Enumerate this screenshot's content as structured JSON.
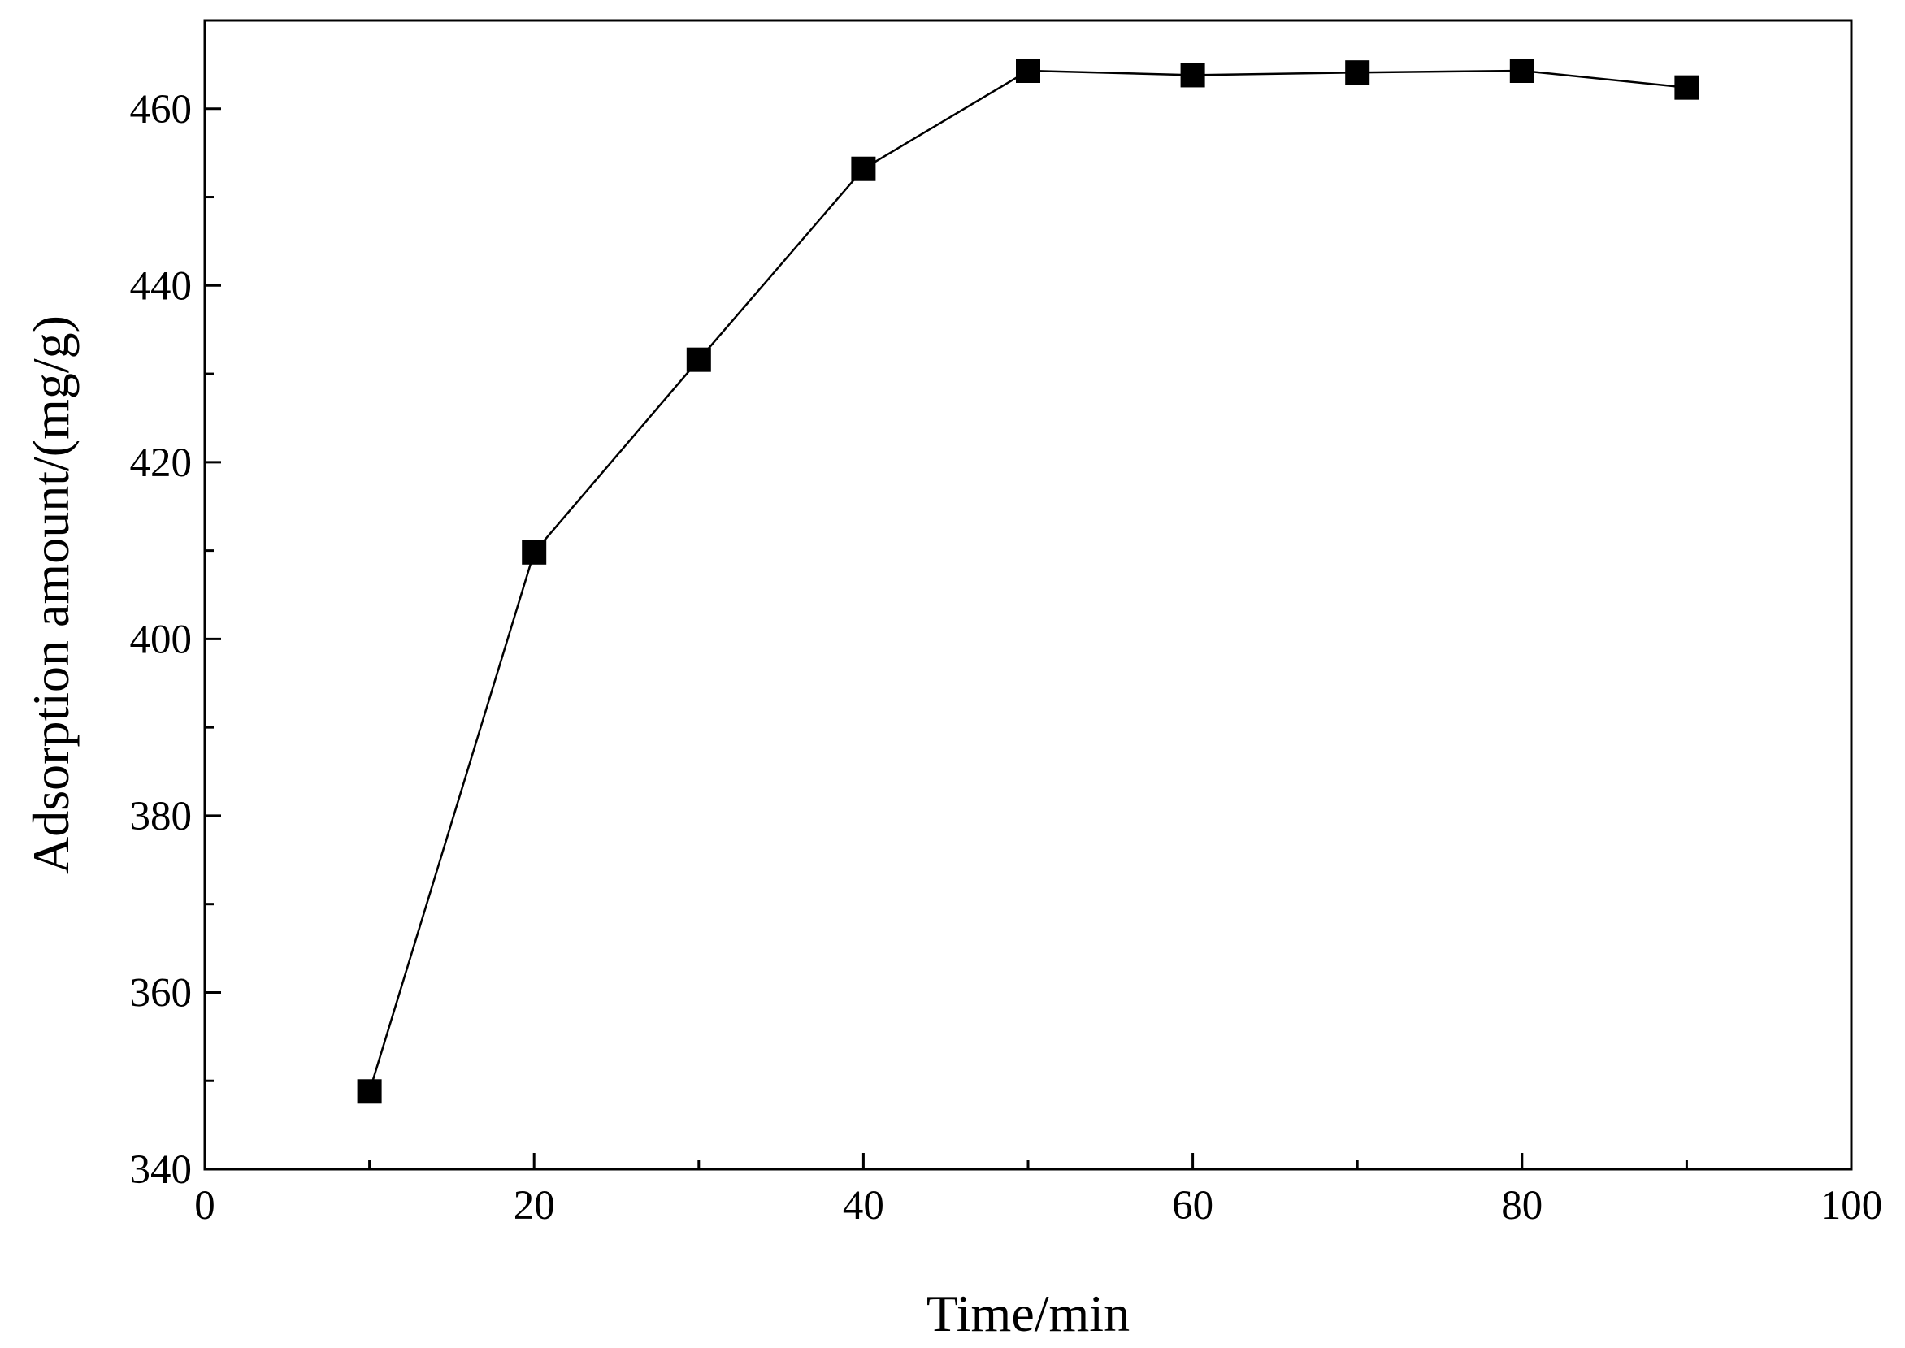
{
  "chart_data": {
    "type": "line",
    "title": "",
    "xlabel": "Time/min",
    "ylabel": "Adsorption amount/(mg/g)",
    "xlim": [
      0,
      100
    ],
    "ylim": [
      340,
      470
    ],
    "x_ticks": [
      0,
      20,
      40,
      60,
      80,
      100
    ],
    "y_ticks": [
      340,
      360,
      380,
      400,
      420,
      440,
      460
    ],
    "grid": false,
    "legend": "none",
    "marker": "square",
    "colors": {
      "line": "#000000",
      "marker": "#000000",
      "axis": "#000000"
    },
    "series": [
      {
        "x": [
          10,
          20,
          30,
          40,
          50,
          60,
          70,
          80,
          90
        ],
        "y": [
          348.8,
          409.8,
          431.6,
          453.2,
          464.3,
          463.8,
          464.1,
          464.3,
          462.4
        ]
      }
    ]
  }
}
